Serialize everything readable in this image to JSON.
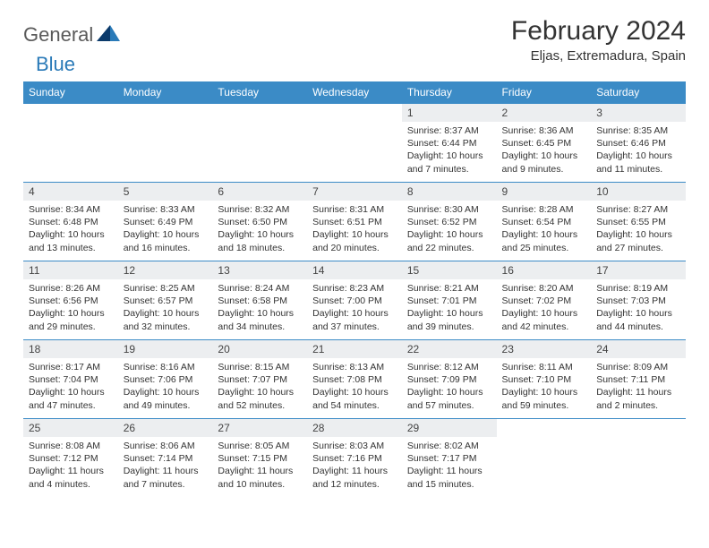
{
  "brand": {
    "general": "General",
    "blue": "Blue"
  },
  "title": "February 2024",
  "location": "Eljas, Extremadura, Spain",
  "colors": {
    "header_bg": "#3b8bc6",
    "header_text": "#ffffff",
    "daynum_bg": "#eceef0",
    "border": "#3b8bc6",
    "brand_blue": "#2a7ab8",
    "brand_gray": "#5a5a5a"
  },
  "day_names": [
    "Sunday",
    "Monday",
    "Tuesday",
    "Wednesday",
    "Thursday",
    "Friday",
    "Saturday"
  ],
  "weeks": [
    [
      null,
      null,
      null,
      null,
      {
        "n": "1",
        "sr": "Sunrise: 8:37 AM",
        "ss": "Sunset: 6:44 PM",
        "dl": "Daylight: 10 hours and 7 minutes."
      },
      {
        "n": "2",
        "sr": "Sunrise: 8:36 AM",
        "ss": "Sunset: 6:45 PM",
        "dl": "Daylight: 10 hours and 9 minutes."
      },
      {
        "n": "3",
        "sr": "Sunrise: 8:35 AM",
        "ss": "Sunset: 6:46 PM",
        "dl": "Daylight: 10 hours and 11 minutes."
      }
    ],
    [
      {
        "n": "4",
        "sr": "Sunrise: 8:34 AM",
        "ss": "Sunset: 6:48 PM",
        "dl": "Daylight: 10 hours and 13 minutes."
      },
      {
        "n": "5",
        "sr": "Sunrise: 8:33 AM",
        "ss": "Sunset: 6:49 PM",
        "dl": "Daylight: 10 hours and 16 minutes."
      },
      {
        "n": "6",
        "sr": "Sunrise: 8:32 AM",
        "ss": "Sunset: 6:50 PM",
        "dl": "Daylight: 10 hours and 18 minutes."
      },
      {
        "n": "7",
        "sr": "Sunrise: 8:31 AM",
        "ss": "Sunset: 6:51 PM",
        "dl": "Daylight: 10 hours and 20 minutes."
      },
      {
        "n": "8",
        "sr": "Sunrise: 8:30 AM",
        "ss": "Sunset: 6:52 PM",
        "dl": "Daylight: 10 hours and 22 minutes."
      },
      {
        "n": "9",
        "sr": "Sunrise: 8:28 AM",
        "ss": "Sunset: 6:54 PM",
        "dl": "Daylight: 10 hours and 25 minutes."
      },
      {
        "n": "10",
        "sr": "Sunrise: 8:27 AM",
        "ss": "Sunset: 6:55 PM",
        "dl": "Daylight: 10 hours and 27 minutes."
      }
    ],
    [
      {
        "n": "11",
        "sr": "Sunrise: 8:26 AM",
        "ss": "Sunset: 6:56 PM",
        "dl": "Daylight: 10 hours and 29 minutes."
      },
      {
        "n": "12",
        "sr": "Sunrise: 8:25 AM",
        "ss": "Sunset: 6:57 PM",
        "dl": "Daylight: 10 hours and 32 minutes."
      },
      {
        "n": "13",
        "sr": "Sunrise: 8:24 AM",
        "ss": "Sunset: 6:58 PM",
        "dl": "Daylight: 10 hours and 34 minutes."
      },
      {
        "n": "14",
        "sr": "Sunrise: 8:23 AM",
        "ss": "Sunset: 7:00 PM",
        "dl": "Daylight: 10 hours and 37 minutes."
      },
      {
        "n": "15",
        "sr": "Sunrise: 8:21 AM",
        "ss": "Sunset: 7:01 PM",
        "dl": "Daylight: 10 hours and 39 minutes."
      },
      {
        "n": "16",
        "sr": "Sunrise: 8:20 AM",
        "ss": "Sunset: 7:02 PM",
        "dl": "Daylight: 10 hours and 42 minutes."
      },
      {
        "n": "17",
        "sr": "Sunrise: 8:19 AM",
        "ss": "Sunset: 7:03 PM",
        "dl": "Daylight: 10 hours and 44 minutes."
      }
    ],
    [
      {
        "n": "18",
        "sr": "Sunrise: 8:17 AM",
        "ss": "Sunset: 7:04 PM",
        "dl": "Daylight: 10 hours and 47 minutes."
      },
      {
        "n": "19",
        "sr": "Sunrise: 8:16 AM",
        "ss": "Sunset: 7:06 PM",
        "dl": "Daylight: 10 hours and 49 minutes."
      },
      {
        "n": "20",
        "sr": "Sunrise: 8:15 AM",
        "ss": "Sunset: 7:07 PM",
        "dl": "Daylight: 10 hours and 52 minutes."
      },
      {
        "n": "21",
        "sr": "Sunrise: 8:13 AM",
        "ss": "Sunset: 7:08 PM",
        "dl": "Daylight: 10 hours and 54 minutes."
      },
      {
        "n": "22",
        "sr": "Sunrise: 8:12 AM",
        "ss": "Sunset: 7:09 PM",
        "dl": "Daylight: 10 hours and 57 minutes."
      },
      {
        "n": "23",
        "sr": "Sunrise: 8:11 AM",
        "ss": "Sunset: 7:10 PM",
        "dl": "Daylight: 10 hours and 59 minutes."
      },
      {
        "n": "24",
        "sr": "Sunrise: 8:09 AM",
        "ss": "Sunset: 7:11 PM",
        "dl": "Daylight: 11 hours and 2 minutes."
      }
    ],
    [
      {
        "n": "25",
        "sr": "Sunrise: 8:08 AM",
        "ss": "Sunset: 7:12 PM",
        "dl": "Daylight: 11 hours and 4 minutes."
      },
      {
        "n": "26",
        "sr": "Sunrise: 8:06 AM",
        "ss": "Sunset: 7:14 PM",
        "dl": "Daylight: 11 hours and 7 minutes."
      },
      {
        "n": "27",
        "sr": "Sunrise: 8:05 AM",
        "ss": "Sunset: 7:15 PM",
        "dl": "Daylight: 11 hours and 10 minutes."
      },
      {
        "n": "28",
        "sr": "Sunrise: 8:03 AM",
        "ss": "Sunset: 7:16 PM",
        "dl": "Daylight: 11 hours and 12 minutes."
      },
      {
        "n": "29",
        "sr": "Sunrise: 8:02 AM",
        "ss": "Sunset: 7:17 PM",
        "dl": "Daylight: 11 hours and 15 minutes."
      },
      null,
      null
    ]
  ]
}
